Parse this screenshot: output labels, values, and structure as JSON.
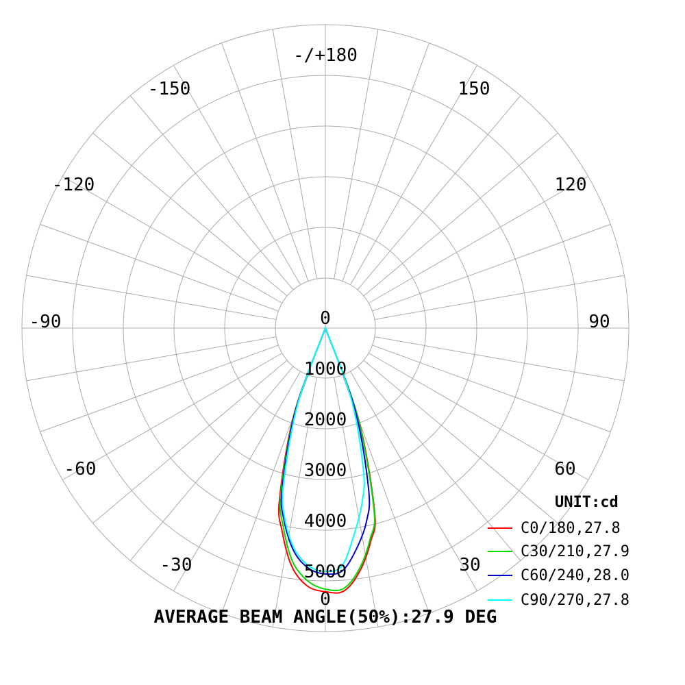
{
  "chart_data": {
    "type": "polar-line",
    "title": "",
    "unit_label": "UNIT:cd",
    "footer": "AVERAGE BEAM ANGLE(50%):27.9 DEG",
    "radial_axis": {
      "range": [
        0,
        5000
      ],
      "tick_values": [
        0,
        1000,
        2000,
        3000,
        4000,
        5000
      ]
    },
    "radial_tick_labels": [
      "0",
      "1000",
      "2000",
      "3000",
      "4000",
      "5000"
    ],
    "angle_labels": {
      "bottom": "0",
      "top": "-/+180",
      "right_30": "30",
      "right_60": "60",
      "right_90": "90",
      "right_120": "120",
      "right_150": "150",
      "left_30": "-30",
      "left_60": "-60",
      "left_90": "-90",
      "left_120": "-120",
      "left_150": "-150"
    },
    "grid": {
      "angle_step_deg": 10,
      "on": true
    },
    "legend_position": "bottom-right",
    "series": [
      {
        "name": "C0/180,27.8",
        "color": "#ff0000",
        "angles": [
          -25,
          -20,
          -15,
          -12,
          -8,
          -4,
          0,
          4,
          8,
          12,
          15,
          20,
          25
        ],
        "values": [
          0,
          1800,
          3500,
          4100,
          4750,
          5100,
          5200,
          5200,
          4850,
          4300,
          3750,
          1900,
          0
        ]
      },
      {
        "name": "C30/210,27.9",
        "color": "#00dd00",
        "angles": [
          -25,
          -20,
          -15,
          -12,
          -8,
          -4,
          0,
          4,
          8,
          12,
          15,
          20,
          25
        ],
        "values": [
          0,
          1750,
          3400,
          4000,
          4650,
          5000,
          5150,
          5150,
          4800,
          4250,
          3700,
          1850,
          0
        ]
      },
      {
        "name": "C60/240,28.0",
        "color": "#0000cc",
        "angles": [
          -25,
          -20,
          -15,
          -12,
          -8,
          -4,
          0,
          4,
          8,
          12,
          15,
          20,
          25
        ],
        "values": [
          0,
          1700,
          3300,
          3900,
          4450,
          4750,
          4850,
          4800,
          4400,
          3900,
          3300,
          1700,
          0
        ]
      },
      {
        "name": "C90/270,27.8",
        "color": "#00ffff",
        "angles": [
          -25,
          -20,
          -15,
          -12,
          -8,
          -4,
          0,
          4,
          8,
          12,
          15,
          20,
          25
        ],
        "values": [
          0,
          1600,
          3200,
          3850,
          4400,
          4700,
          4800,
          4700,
          4100,
          3500,
          2900,
          1500,
          0
        ]
      }
    ]
  }
}
